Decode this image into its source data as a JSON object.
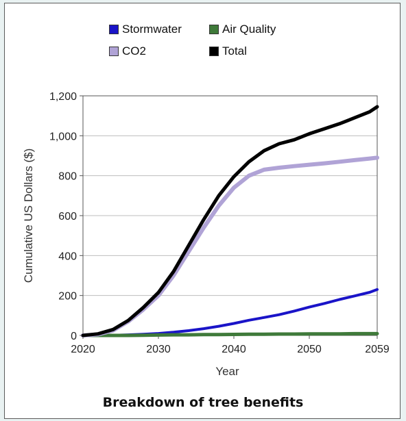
{
  "chart_data": {
    "type": "line",
    "title": "",
    "caption": "Breakdown of tree benefits",
    "xlabel": "Year",
    "ylabel": "Cumulative US Dollars ($)",
    "xlim": [
      2020,
      2059
    ],
    "ylim": [
      0,
      1200
    ],
    "x_ticks": [
      2020,
      2030,
      2040,
      2050,
      2059
    ],
    "y_ticks": [
      0,
      200,
      400,
      600,
      800,
      1000,
      1200
    ],
    "y_tick_labels": [
      "0",
      "200",
      "400",
      "600",
      "800",
      "1,000",
      "1,200"
    ],
    "grid": "horizontal",
    "legend_placement": "top",
    "x": [
      2020,
      2022,
      2024,
      2026,
      2028,
      2030,
      2032,
      2034,
      2036,
      2038,
      2040,
      2042,
      2044,
      2046,
      2048,
      2050,
      2052,
      2054,
      2056,
      2058,
      2059
    ],
    "series": [
      {
        "name": "Stormwater",
        "color": "#1a14c8",
        "values": [
          0,
          0,
          1,
          3,
          6,
          10,
          16,
          24,
          34,
          46,
          60,
          76,
          90,
          104,
          122,
          142,
          160,
          180,
          198,
          216,
          230
        ]
      },
      {
        "name": "Air Quality",
        "color": "#3f7a3a",
        "values": [
          0,
          0,
          0,
          0,
          1,
          2,
          3,
          3,
          4,
          4,
          5,
          6,
          6,
          7,
          7,
          8,
          8,
          8,
          9,
          9,
          9
        ]
      },
      {
        "name": "CO2",
        "color": "#b0a3d6",
        "values": [
          0,
          5,
          25,
          70,
          130,
          200,
          300,
          420,
          540,
          650,
          740,
          800,
          830,
          840,
          848,
          855,
          862,
          870,
          878,
          886,
          890
        ]
      },
      {
        "name": "Total",
        "color": "#000000",
        "values": [
          0,
          8,
          30,
          75,
          140,
          215,
          320,
          450,
          580,
          700,
          795,
          870,
          925,
          960,
          980,
          1010,
          1035,
          1060,
          1090,
          1120,
          1145
        ]
      }
    ]
  },
  "legend": {
    "stormwater": "Stormwater",
    "air_quality": "Air Quality",
    "co2": "CO2",
    "total": "Total"
  },
  "colors": {
    "stormwater": "#1a14c8",
    "air_quality": "#3f7a3a",
    "co2": "#b0a3d6",
    "total": "#000000"
  }
}
